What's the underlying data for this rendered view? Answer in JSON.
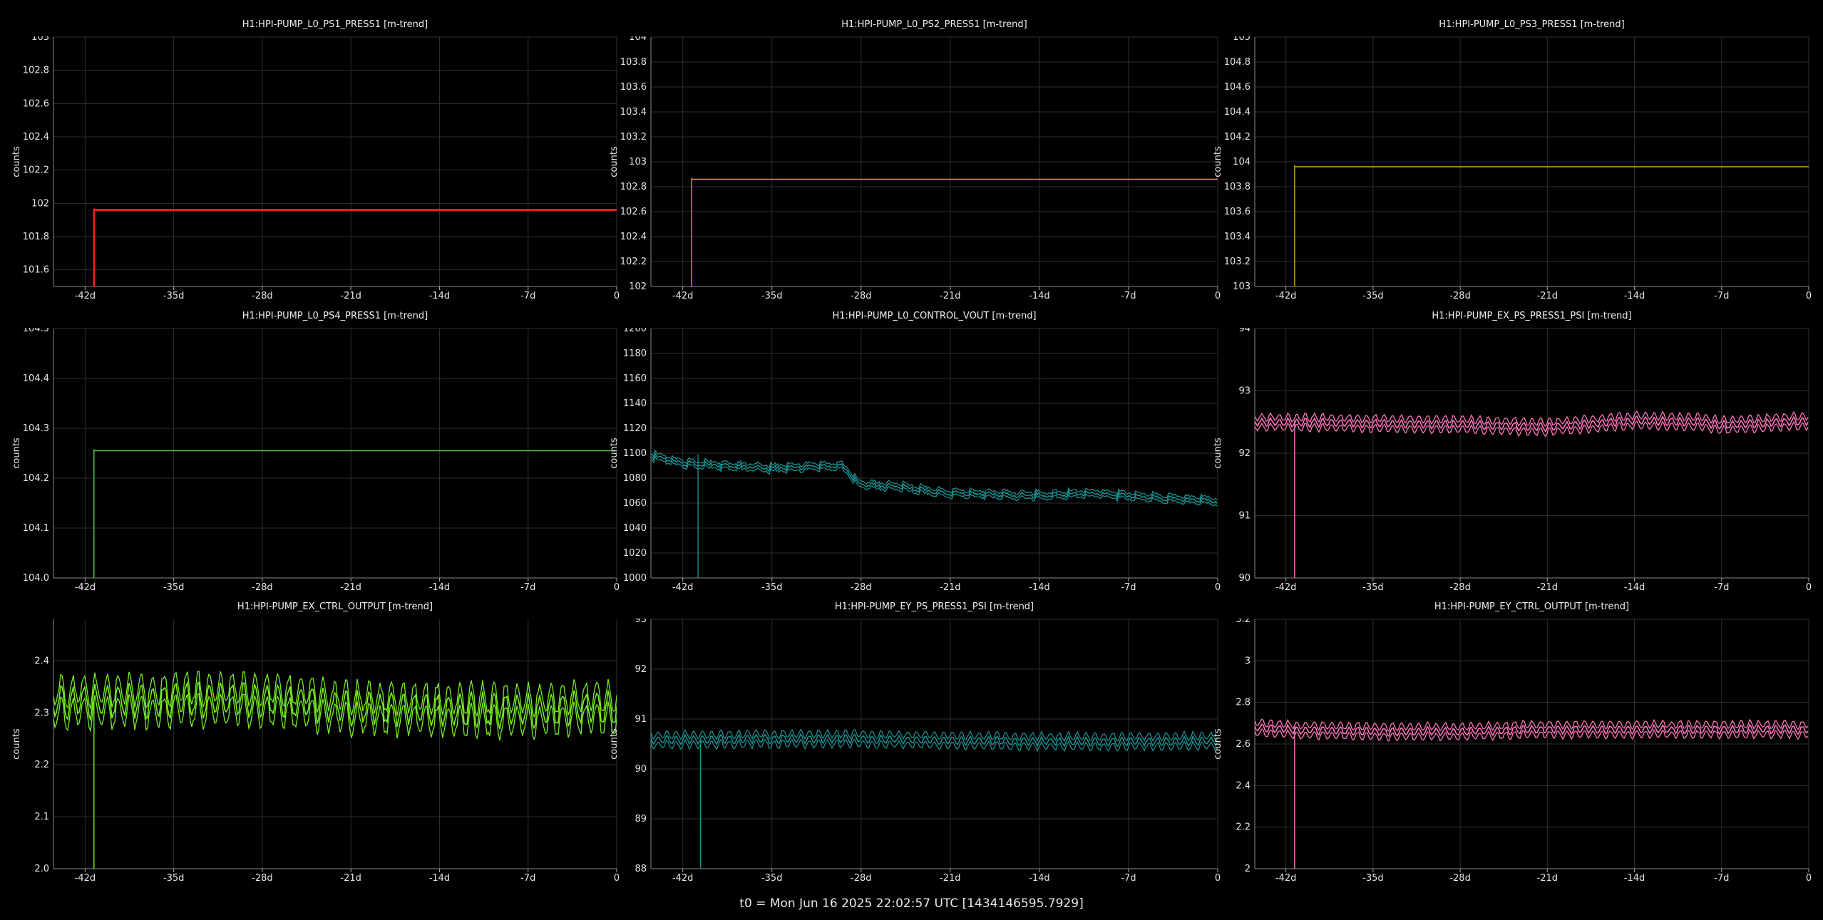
{
  "footer": "t0 = Mon Jun 16 2025 22:02:57 UTC [1434146595.7929]",
  "chart_data": [
    {
      "type": "line",
      "title": "H1:HPI-PUMP_L0_PS1_PRESS1 [m-trend]",
      "ylabel": "counts",
      "xlim": [
        -44.5,
        0
      ],
      "ylim": [
        101.5,
        103
      ],
      "xticks": [
        -42,
        -35,
        -28,
        -21,
        -14,
        -7,
        0
      ],
      "xtick_labels": [
        "-42d",
        "-35d",
        "-28d",
        "-21d",
        "-14d",
        "-7d",
        "0"
      ],
      "yticks": [
        101.6,
        101.8,
        102,
        102.2,
        102.4,
        102.6,
        102.8,
        103
      ],
      "ytick_labels": [
        "101.6",
        "101.8",
        "102",
        "102.2",
        "102.4",
        "102.6",
        "102.8",
        "103"
      ],
      "color": "#ff1a1a",
      "data_start": -41.3,
      "series": [
        {
          "x": [
            -41.3,
            0
          ],
          "y": [
            101.96,
            101.96
          ]
        }
      ]
    },
    {
      "type": "line",
      "title": "H1:HPI-PUMP_L0_PS2_PRESS1 [m-trend]",
      "ylabel": "counts",
      "xlim": [
        -44.5,
        0
      ],
      "ylim": [
        102,
        104
      ],
      "xticks": [
        -42,
        -35,
        -28,
        -21,
        -14,
        -7,
        0
      ],
      "xtick_labels": [
        "-42d",
        "-35d",
        "-28d",
        "-21d",
        "-14d",
        "-7d",
        "0"
      ],
      "yticks": [
        102,
        102.2,
        102.4,
        102.6,
        102.8,
        103,
        103.2,
        103.4,
        103.6,
        103.8,
        104
      ],
      "ytick_labels": [
        "102",
        "102.2",
        "102.4",
        "102.6",
        "102.8",
        "103",
        "103.2",
        "103.4",
        "103.6",
        "103.8",
        "104"
      ],
      "color": "#e6a000",
      "data_start": -41.3,
      "series": [
        {
          "x": [
            -41.3,
            0
          ],
          "y": [
            102.86,
            102.86
          ]
        }
      ]
    },
    {
      "type": "line",
      "title": "H1:HPI-PUMP_L0_PS3_PRESS1 [m-trend]",
      "ylabel": "counts",
      "xlim": [
        -44.5,
        0
      ],
      "ylim": [
        103,
        105
      ],
      "xticks": [
        -42,
        -35,
        -28,
        -21,
        -14,
        -7,
        0
      ],
      "xtick_labels": [
        "-42d",
        "-35d",
        "-28d",
        "-21d",
        "-14d",
        "-7d",
        "0"
      ],
      "yticks": [
        103,
        103.2,
        103.4,
        103.6,
        103.8,
        104,
        104.2,
        104.4,
        104.6,
        104.8,
        105
      ],
      "ytick_labels": [
        "103",
        "103.2",
        "103.4",
        "103.6",
        "103.8",
        "104",
        "104.2",
        "104.4",
        "104.6",
        "104.8",
        "105"
      ],
      "color": "#d9a520",
      "data_start": -41.3,
      "series": [
        {
          "x": [
            -41.3,
            0
          ],
          "y": [
            103.96,
            103.96
          ]
        }
      ]
    },
    {
      "type": "line",
      "title": "H1:HPI-PUMP_L0_PS4_PRESS1 [m-trend]",
      "ylabel": "counts",
      "xlim": [
        -44.5,
        0
      ],
      "ylim": [
        104.0,
        104.5
      ],
      "xticks": [
        -42,
        -35,
        -28,
        -21,
        -14,
        -7,
        0
      ],
      "xtick_labels": [
        "-42d",
        "-35d",
        "-28d",
        "-21d",
        "-14d",
        "-7d",
        "0"
      ],
      "yticks": [
        104.0,
        104.1,
        104.2,
        104.3,
        104.4,
        104.5
      ],
      "ytick_labels": [
        "104.0",
        "104.1",
        "104.2",
        "104.3",
        "104.4",
        "104.5"
      ],
      "color": "#55cc44",
      "data_start": -41.3,
      "series": [
        {
          "x": [
            -41.3,
            0
          ],
          "y": [
            104.255,
            104.255
          ]
        }
      ]
    },
    {
      "type": "line",
      "title": "H1:HPI-PUMP_L0_CONTROL_VOUT [m-trend]",
      "ylabel": "counts",
      "xlim": [
        -44.5,
        0
      ],
      "ylim": [
        1000,
        1200
      ],
      "xticks": [
        -42,
        -35,
        -28,
        -21,
        -14,
        -7,
        0
      ],
      "xtick_labels": [
        "-42d",
        "-35d",
        "-28d",
        "-21d",
        "-14d",
        "-7d",
        "0"
      ],
      "yticks": [
        1000,
        1020,
        1040,
        1060,
        1080,
        1100,
        1120,
        1140,
        1160,
        1180,
        1200
      ],
      "ytick_labels": [
        "1000",
        "1020",
        "1040",
        "1060",
        "1080",
        "1100",
        "1120",
        "1140",
        "1160",
        "1180",
        "1200"
      ],
      "color": "#1a8f8f",
      "data_start": -40.8,
      "series": [
        {
          "x": [
            -44.5,
            -42,
            -35,
            -29.5,
            -28,
            -25,
            -21,
            -14,
            -10,
            -7,
            -3,
            0
          ],
          "y": [
            1098,
            1092,
            1088,
            1090,
            1075,
            1073,
            1068,
            1066,
            1068,
            1066,
            1063,
            1062
          ]
        }
      ]
    },
    {
      "type": "line",
      "title": "H1:HPI-PUMP_EX_PS_PRESS1_PSI [m-trend]",
      "ylabel": "counts",
      "xlim": [
        -44.5,
        0
      ],
      "ylim": [
        90,
        94
      ],
      "xticks": [
        -42,
        -35,
        -28,
        -21,
        -14,
        -7,
        0
      ],
      "xtick_labels": [
        "-42d",
        "-35d",
        "-28d",
        "-21d",
        "-14d",
        "-7d",
        "0"
      ],
      "yticks": [
        90,
        91,
        92,
        93,
        94
      ],
      "ytick_labels": [
        "90",
        "91",
        "92",
        "93",
        "94"
      ],
      "color": "#ff77bb",
      "data_start": -41.3,
      "series": [
        {
          "x": [
            -44.5,
            -35,
            -28,
            -21,
            -14,
            -9,
            -7,
            0
          ],
          "y": [
            92.5,
            92.48,
            92.46,
            92.42,
            92.52,
            92.5,
            92.45,
            92.52
          ]
        }
      ]
    },
    {
      "type": "line",
      "title": "H1:HPI-PUMP_EX_CTRL_OUTPUT [m-trend]",
      "ylabel": "counts",
      "xlim": [
        -44.5,
        0
      ],
      "ylim": [
        2.0,
        2.48
      ],
      "xticks": [
        -42,
        -35,
        -28,
        -21,
        -14,
        -7,
        0
      ],
      "xtick_labels": [
        "-42d",
        "-35d",
        "-28d",
        "-21d",
        "-14d",
        "-7d",
        "0"
      ],
      "yticks": [
        2.0,
        2.1,
        2.2,
        2.3,
        2.4
      ],
      "ytick_labels": [
        "2.0",
        "2.1",
        "2.2",
        "2.3",
        "2.4"
      ],
      "color": "#77ee22",
      "data_start": -41.3,
      "series": [
        {
          "x": [
            -44.5,
            -35,
            -28,
            -21,
            -14,
            -7,
            0
          ],
          "y": [
            2.32,
            2.325,
            2.325,
            2.31,
            2.305,
            2.305,
            2.31
          ]
        }
      ]
    },
    {
      "type": "line",
      "title": "H1:HPI-PUMP_EY_PS_PRESS1_PSI [m-trend]",
      "ylabel": "counts",
      "xlim": [
        -44.5,
        0
      ],
      "ylim": [
        88,
        93
      ],
      "xticks": [
        -42,
        -35,
        -28,
        -21,
        -14,
        -7,
        0
      ],
      "xtick_labels": [
        "-42d",
        "-35d",
        "-28d",
        "-21d",
        "-14d",
        "-7d",
        "0"
      ],
      "yticks": [
        88,
        89,
        90,
        91,
        92,
        93
      ],
      "ytick_labels": [
        "88",
        "89",
        "90",
        "91",
        "92",
        "93"
      ],
      "color": "#1a8f8f",
      "data_start": -40.6,
      "series": [
        {
          "x": [
            -44.5,
            -35,
            -28,
            -21,
            -14,
            -7,
            0
          ],
          "y": [
            90.58,
            90.6,
            90.6,
            90.57,
            90.55,
            90.55,
            90.56
          ]
        }
      ]
    },
    {
      "type": "line",
      "title": "H1:HPI-PUMP_EY_CTRL_OUTPUT [m-trend]",
      "ylabel": "counts",
      "xlim": [
        -44.5,
        0
      ],
      "ylim": [
        2.0,
        3.2
      ],
      "xticks": [
        -42,
        -35,
        -28,
        -21,
        -14,
        -7,
        0
      ],
      "xtick_labels": [
        "-42d",
        "-35d",
        "-28d",
        "-21d",
        "-14d",
        "-7d",
        "0"
      ],
      "yticks": [
        2.0,
        2.2,
        2.4,
        2.6,
        2.8,
        3.0,
        3.2
      ],
      "ytick_labels": [
        "2",
        "2.2",
        "2.4",
        "2.6",
        "2.8",
        "3",
        "3.2"
      ],
      "color": "#ff77bb",
      "data_start": -41.3,
      "series": [
        {
          "x": [
            -44.5,
            -42,
            -35,
            -28,
            -21,
            -14,
            -7,
            0
          ],
          "y": [
            2.68,
            2.67,
            2.66,
            2.66,
            2.67,
            2.67,
            2.67,
            2.67
          ]
        }
      ]
    }
  ]
}
